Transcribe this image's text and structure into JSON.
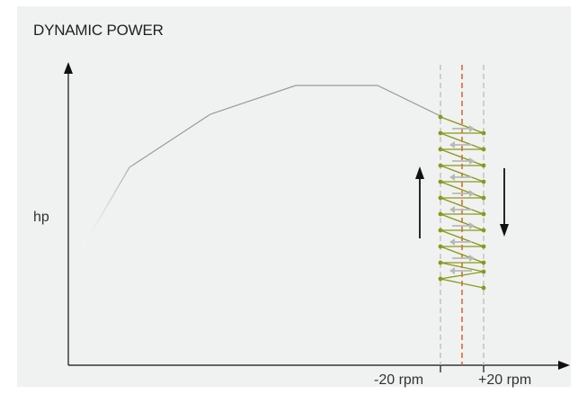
{
  "title": "DYNAMIC POWER",
  "y_axis_label": "hp",
  "band_labels": {
    "lower": "-20 rpm",
    "upper": "+20 rpm"
  },
  "colors": {
    "panel_background": "#f0f1f1",
    "axis": "#111111",
    "power_curve": "#9a9a9a",
    "oscillation_path": "#8a9a1a",
    "center_line": "#e0602a",
    "band_limits": "#bcbcbc",
    "step_arrows": "#b8b8b8",
    "direction_arrows": "#111111"
  },
  "icons": {
    "up_arrow": "arrow-up-icon",
    "down_arrow": "arrow-down-icon"
  }
}
